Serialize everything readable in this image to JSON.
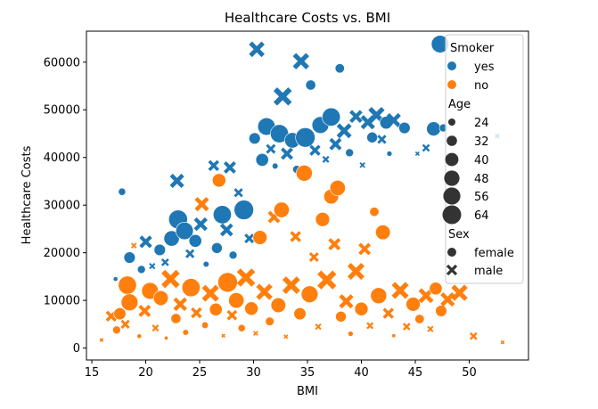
{
  "chart_data": {
    "type": "scatter",
    "title": "Healthcare Costs vs. BMI",
    "xlabel": "BMI",
    "ylabel": "Healthcare Costs",
    "xlim": [
      14.5,
      55.5
    ],
    "ylim": [
      -2500,
      66500
    ],
    "xticks": [
      15,
      20,
      25,
      30,
      35,
      40,
      45,
      50
    ],
    "yticks": [
      0,
      10000,
      20000,
      30000,
      40000,
      50000,
      60000
    ],
    "xtick_labels": [
      "15",
      "20",
      "25",
      "30",
      "35",
      "40",
      "45",
      "50"
    ],
    "ytick_labels": [
      "0",
      "10000",
      "20000",
      "30000",
      "40000",
      "50000",
      "60000"
    ],
    "grid": false,
    "legend_position": "top-right",
    "colors": {
      "yes": "#1f77b4",
      "no": "#ff7f0e"
    },
    "legend": {
      "hue_title": "Smoker",
      "hue_items": [
        {
          "label": "yes",
          "color": "#1f77b4"
        },
        {
          "label": "no",
          "color": "#ff7f0e"
        }
      ],
      "size_title": "Age",
      "size_items": [
        "24",
        "32",
        "40",
        "48",
        "56",
        "64"
      ],
      "style_title": "Sex",
      "style_items": [
        {
          "label": "female",
          "marker": "circle"
        },
        {
          "label": "male",
          "marker": "x"
        }
      ]
    },
    "series": [
      {
        "name": "yes",
        "color": "#1f77b4",
        "points": [
          {
            "x": 17.2,
            "y": 14500,
            "age": 20,
            "sex": "female"
          },
          {
            "x": 17.8,
            "y": 32800,
            "age": 28,
            "sex": "female"
          },
          {
            "x": 18.5,
            "y": 19000,
            "age": 40,
            "sex": "female"
          },
          {
            "x": 19.6,
            "y": 16500,
            "age": 30,
            "sex": "female"
          },
          {
            "x": 20.0,
            "y": 22300,
            "age": 45,
            "sex": "male"
          },
          {
            "x": 20.6,
            "y": 17200,
            "age": 26,
            "sex": "male"
          },
          {
            "x": 21.3,
            "y": 20600,
            "age": 40,
            "sex": "female"
          },
          {
            "x": 21.8,
            "y": 18000,
            "age": 30,
            "sex": "male"
          },
          {
            "x": 22.4,
            "y": 23000,
            "age": 52,
            "sex": "female"
          },
          {
            "x": 22.9,
            "y": 35100,
            "age": 50,
            "sex": "male"
          },
          {
            "x": 23.0,
            "y": 27000,
            "age": 62,
            "sex": "female"
          },
          {
            "x": 23.6,
            "y": 24600,
            "age": 58,
            "sex": "female"
          },
          {
            "x": 24.1,
            "y": 19800,
            "age": 34,
            "sex": "male"
          },
          {
            "x": 24.6,
            "y": 22500,
            "age": 44,
            "sex": "female"
          },
          {
            "x": 25.1,
            "y": 26000,
            "age": 48,
            "sex": "male"
          },
          {
            "x": 25.6,
            "y": 17600,
            "age": 24,
            "sex": "female"
          },
          {
            "x": 26.3,
            "y": 38300,
            "age": 40,
            "sex": "male"
          },
          {
            "x": 26.6,
            "y": 21000,
            "age": 38,
            "sex": "female"
          },
          {
            "x": 27.1,
            "y": 28000,
            "age": 60,
            "sex": "female"
          },
          {
            "x": 27.5,
            "y": 24800,
            "age": 46,
            "sex": "male"
          },
          {
            "x": 27.8,
            "y": 37900,
            "age": 44,
            "sex": "male"
          },
          {
            "x": 28.1,
            "y": 19500,
            "age": 30,
            "sex": "female"
          },
          {
            "x": 28.6,
            "y": 32600,
            "age": 34,
            "sex": "male"
          },
          {
            "x": 29.1,
            "y": 29000,
            "age": 64,
            "sex": "female"
          },
          {
            "x": 29.6,
            "y": 23000,
            "age": 36,
            "sex": "male"
          },
          {
            "x": 30.1,
            "y": 44000,
            "age": 40,
            "sex": "female"
          },
          {
            "x": 30.3,
            "y": 62700,
            "age": 54,
            "sex": "male"
          },
          {
            "x": 30.8,
            "y": 39500,
            "age": 44,
            "sex": "female"
          },
          {
            "x": 31.2,
            "y": 46500,
            "age": 58,
            "sex": "female"
          },
          {
            "x": 31.6,
            "y": 41800,
            "age": 36,
            "sex": "male"
          },
          {
            "x": 32.0,
            "y": 38200,
            "age": 24,
            "sex": "female"
          },
          {
            "x": 32.4,
            "y": 45000,
            "age": 60,
            "sex": "female"
          },
          {
            "x": 32.7,
            "y": 52800,
            "age": 62,
            "sex": "male"
          },
          {
            "x": 33.1,
            "y": 40800,
            "age": 44,
            "sex": "male"
          },
          {
            "x": 33.6,
            "y": 43600,
            "age": 52,
            "sex": "female"
          },
          {
            "x": 34.0,
            "y": 37500,
            "age": 30,
            "sex": "female"
          },
          {
            "x": 34.4,
            "y": 60200,
            "age": 56,
            "sex": "male"
          },
          {
            "x": 34.8,
            "y": 44200,
            "age": 64,
            "sex": "female"
          },
          {
            "x": 35.3,
            "y": 55200,
            "age": 36,
            "sex": "female"
          },
          {
            "x": 35.7,
            "y": 41500,
            "age": 40,
            "sex": "male"
          },
          {
            "x": 36.2,
            "y": 46800,
            "age": 56,
            "sex": "female"
          },
          {
            "x": 36.7,
            "y": 39600,
            "age": 28,
            "sex": "male"
          },
          {
            "x": 37.2,
            "y": 48500,
            "age": 60,
            "sex": "female"
          },
          {
            "x": 37.6,
            "y": 42800,
            "age": 44,
            "sex": "male"
          },
          {
            "x": 38.0,
            "y": 58700,
            "age": 34,
            "sex": "female"
          },
          {
            "x": 38.4,
            "y": 45600,
            "age": 52,
            "sex": "male"
          },
          {
            "x": 38.9,
            "y": 41000,
            "age": 30,
            "sex": "female"
          },
          {
            "x": 39.5,
            "y": 48600,
            "age": 46,
            "sex": "male"
          },
          {
            "x": 40.1,
            "y": 38400,
            "age": 24,
            "sex": "male"
          },
          {
            "x": 40.6,
            "y": 47400,
            "age": 50,
            "sex": "male"
          },
          {
            "x": 41.0,
            "y": 44200,
            "age": 38,
            "sex": "female"
          },
          {
            "x": 41.4,
            "y": 48900,
            "age": 56,
            "sex": "male"
          },
          {
            "x": 41.9,
            "y": 43800,
            "age": 34,
            "sex": "male"
          },
          {
            "x": 42.3,
            "y": 47300,
            "age": 44,
            "sex": "female"
          },
          {
            "x": 42.6,
            "y": 40800,
            "age": 22,
            "sex": "female"
          },
          {
            "x": 43.0,
            "y": 47800,
            "age": 50,
            "sex": "male"
          },
          {
            "x": 44.0,
            "y": 46200,
            "age": 40,
            "sex": "female"
          },
          {
            "x": 45.2,
            "y": 40800,
            "age": 20,
            "sex": "male"
          },
          {
            "x": 46.0,
            "y": 42000,
            "age": 30,
            "sex": "male"
          },
          {
            "x": 46.7,
            "y": 46000,
            "age": 48,
            "sex": "female"
          },
          {
            "x": 47.3,
            "y": 63800,
            "age": 58,
            "sex": "female"
          },
          {
            "x": 47.6,
            "y": 46200,
            "age": 30,
            "sex": "female"
          },
          {
            "x": 52.6,
            "y": 44500,
            "age": 22,
            "sex": "male"
          }
        ]
      },
      {
        "name": "no",
        "color": "#ff7f0e",
        "points": [
          {
            "x": 15.9,
            "y": 1700,
            "age": 18,
            "sex": "male"
          },
          {
            "x": 16.8,
            "y": 6700,
            "age": 40,
            "sex": "male"
          },
          {
            "x": 17.3,
            "y": 3800,
            "age": 30,
            "sex": "female"
          },
          {
            "x": 17.6,
            "y": 7200,
            "age": 42,
            "sex": "female"
          },
          {
            "x": 18.1,
            "y": 5000,
            "age": 34,
            "sex": "male"
          },
          {
            "x": 18.3,
            "y": 13200,
            "age": 60,
            "sex": "female"
          },
          {
            "x": 18.5,
            "y": 9600,
            "age": 56,
            "sex": "female"
          },
          {
            "x": 18.9,
            "y": 21500,
            "age": 24,
            "sex": "male"
          },
          {
            "x": 19.4,
            "y": 2500,
            "age": 20,
            "sex": "female"
          },
          {
            "x": 19.9,
            "y": 7800,
            "age": 44,
            "sex": "male"
          },
          {
            "x": 20.4,
            "y": 12000,
            "age": 56,
            "sex": "female"
          },
          {
            "x": 20.9,
            "y": 4200,
            "age": 28,
            "sex": "male"
          },
          {
            "x": 21.4,
            "y": 10500,
            "age": 50,
            "sex": "female"
          },
          {
            "x": 21.9,
            "y": 2100,
            "age": 18,
            "sex": "female"
          },
          {
            "x": 22.3,
            "y": 14500,
            "age": 62,
            "sex": "male"
          },
          {
            "x": 22.8,
            "y": 6200,
            "age": 36,
            "sex": "female"
          },
          {
            "x": 23.2,
            "y": 9200,
            "age": 48,
            "sex": "male"
          },
          {
            "x": 23.7,
            "y": 3300,
            "age": 24,
            "sex": "female"
          },
          {
            "x": 24.2,
            "y": 12700,
            "age": 60,
            "sex": "female"
          },
          {
            "x": 24.7,
            "y": 7400,
            "age": 40,
            "sex": "male"
          },
          {
            "x": 25.2,
            "y": 30200,
            "age": 50,
            "sex": "male"
          },
          {
            "x": 25.5,
            "y": 4800,
            "age": 26,
            "sex": "female"
          },
          {
            "x": 26.0,
            "y": 11500,
            "age": 58,
            "sex": "male"
          },
          {
            "x": 26.5,
            "y": 8100,
            "age": 44,
            "sex": "female"
          },
          {
            "x": 26.8,
            "y": 35200,
            "age": 46,
            "sex": "female"
          },
          {
            "x": 27.2,
            "y": 2600,
            "age": 18,
            "sex": "male"
          },
          {
            "x": 27.6,
            "y": 13800,
            "age": 64,
            "sex": "female"
          },
          {
            "x": 28.0,
            "y": 6900,
            "age": 38,
            "sex": "male"
          },
          {
            "x": 28.4,
            "y": 10000,
            "age": 52,
            "sex": "female"
          },
          {
            "x": 28.9,
            "y": 4200,
            "age": 28,
            "sex": "female"
          },
          {
            "x": 29.3,
            "y": 14800,
            "age": 62,
            "sex": "male"
          },
          {
            "x": 29.8,
            "y": 8300,
            "age": 46,
            "sex": "female"
          },
          {
            "x": 30.2,
            "y": 3100,
            "age": 22,
            "sex": "male"
          },
          {
            "x": 30.6,
            "y": 23200,
            "age": 48,
            "sex": "female"
          },
          {
            "x": 31.0,
            "y": 11800,
            "age": 56,
            "sex": "male"
          },
          {
            "x": 31.5,
            "y": 5600,
            "age": 32,
            "sex": "female"
          },
          {
            "x": 31.9,
            "y": 27500,
            "age": 44,
            "sex": "male"
          },
          {
            "x": 32.3,
            "y": 9000,
            "age": 50,
            "sex": "female"
          },
          {
            "x": 32.6,
            "y": 29000,
            "age": 52,
            "sex": "female"
          },
          {
            "x": 33.0,
            "y": 2400,
            "age": 20,
            "sex": "male"
          },
          {
            "x": 33.5,
            "y": 13200,
            "age": 60,
            "sex": "male"
          },
          {
            "x": 33.9,
            "y": 23400,
            "age": 40,
            "sex": "male"
          },
          {
            "x": 34.3,
            "y": 7200,
            "age": 42,
            "sex": "female"
          },
          {
            "x": 34.7,
            "y": 36700,
            "age": 54,
            "sex": "female"
          },
          {
            "x": 35.2,
            "y": 11300,
            "age": 56,
            "sex": "female"
          },
          {
            "x": 35.6,
            "y": 19100,
            "age": 36,
            "sex": "male"
          },
          {
            "x": 36.0,
            "y": 4500,
            "age": 26,
            "sex": "male"
          },
          {
            "x": 36.4,
            "y": 27000,
            "age": 48,
            "sex": "female"
          },
          {
            "x": 36.8,
            "y": 14300,
            "age": 64,
            "sex": "male"
          },
          {
            "x": 37.2,
            "y": 31800,
            "age": 50,
            "sex": "female"
          },
          {
            "x": 37.5,
            "y": 21800,
            "age": 44,
            "sex": "male"
          },
          {
            "x": 37.8,
            "y": 33600,
            "age": 52,
            "sex": "female"
          },
          {
            "x": 38.1,
            "y": 6600,
            "age": 38,
            "sex": "female"
          },
          {
            "x": 38.6,
            "y": 9800,
            "age": 50,
            "sex": "male"
          },
          {
            "x": 39.0,
            "y": 3000,
            "age": 22,
            "sex": "female"
          },
          {
            "x": 39.5,
            "y": 16100,
            "age": 58,
            "sex": "male"
          },
          {
            "x": 40.0,
            "y": 8200,
            "age": 46,
            "sex": "female"
          },
          {
            "x": 40.3,
            "y": 20800,
            "age": 44,
            "sex": "male"
          },
          {
            "x": 40.8,
            "y": 4700,
            "age": 28,
            "sex": "male"
          },
          {
            "x": 41.2,
            "y": 28600,
            "age": 34,
            "sex": "female"
          },
          {
            "x": 41.6,
            "y": 11000,
            "age": 54,
            "sex": "female"
          },
          {
            "x": 42.0,
            "y": 24300,
            "age": 50,
            "sex": "female"
          },
          {
            "x": 42.5,
            "y": 7300,
            "age": 40,
            "sex": "male"
          },
          {
            "x": 43.0,
            "y": 2600,
            "age": 18,
            "sex": "female"
          },
          {
            "x": 43.6,
            "y": 12100,
            "age": 58,
            "sex": "male"
          },
          {
            "x": 44.2,
            "y": 4500,
            "age": 30,
            "sex": "male"
          },
          {
            "x": 44.8,
            "y": 9200,
            "age": 48,
            "sex": "female"
          },
          {
            "x": 45.4,
            "y": 6100,
            "age": 34,
            "sex": "female"
          },
          {
            "x": 46.0,
            "y": 11000,
            "age": 52,
            "sex": "male"
          },
          {
            "x": 46.4,
            "y": 4000,
            "age": 26,
            "sex": "male"
          },
          {
            "x": 46.9,
            "y": 12500,
            "age": 44,
            "sex": "female"
          },
          {
            "x": 47.4,
            "y": 7800,
            "age": 40,
            "sex": "female"
          },
          {
            "x": 48.0,
            "y": 10200,
            "age": 50,
            "sex": "male"
          },
          {
            "x": 49.1,
            "y": 11600,
            "age": 56,
            "sex": "male"
          },
          {
            "x": 50.4,
            "y": 2500,
            "age": 30,
            "sex": "male"
          },
          {
            "x": 53.1,
            "y": 1200,
            "age": 18,
            "sex": "male"
          }
        ]
      }
    ]
  }
}
